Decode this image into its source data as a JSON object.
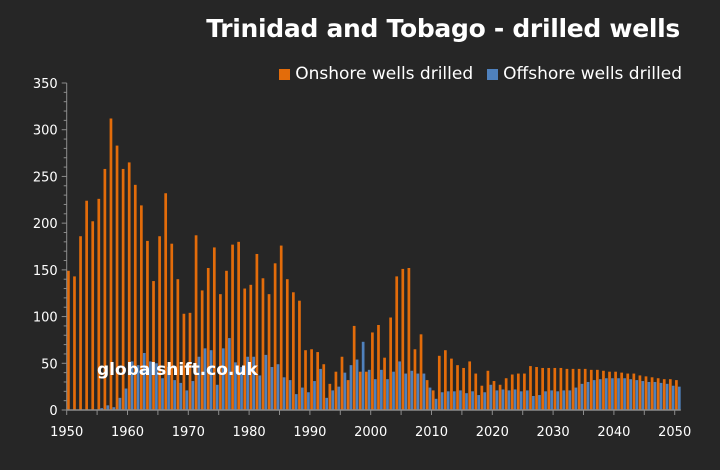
{
  "chart_data": {
    "type": "bar",
    "title": "Trinidad and Tobago - drilled wells",
    "xlabel": "",
    "ylabel": "",
    "ylim": [
      0,
      350
    ],
    "yticks": [
      0,
      50,
      100,
      150,
      200,
      250,
      300,
      350
    ],
    "xtick_labels": [
      "1950",
      "1960",
      "1970",
      "1980",
      "1990",
      "2000",
      "2010",
      "2020",
      "2030",
      "2040",
      "2050"
    ],
    "legend_position": "top-right",
    "grid": false,
    "x_start": 1950,
    "x_end": 2050,
    "series": [
      {
        "name": "Onshore wells drilled",
        "color": "#E36C0A",
        "values": [
          149,
          143,
          186,
          224,
          202,
          226,
          258,
          312,
          283,
          258,
          265,
          241,
          219,
          181,
          138,
          186,
          232,
          178,
          140,
          103,
          104,
          187,
          128,
          152,
          174,
          124,
          149,
          177,
          180,
          130,
          134,
          167,
          141,
          124,
          157,
          176,
          140,
          126,
          117,
          64,
          65,
          62,
          49,
          28,
          41,
          57,
          32,
          90,
          41,
          41,
          83,
          91,
          56,
          99,
          143,
          151,
          152,
          65,
          81,
          32,
          21,
          58,
          64,
          55,
          48,
          45,
          52,
          39,
          26,
          42,
          31,
          27,
          34,
          38,
          39,
          39,
          47,
          46,
          45,
          45,
          45,
          45,
          44,
          44,
          44,
          44,
          43,
          43,
          42,
          41,
          41,
          40,
          39,
          39,
          37,
          36,
          35,
          34,
          33,
          33,
          32
        ]
      },
      {
        "name": "Offshore wells drilled",
        "color": "#4F81BD",
        "values": [
          0,
          0,
          0,
          0,
          0,
          2,
          5,
          3,
          13,
          23,
          52,
          48,
          61,
          52,
          50,
          34,
          46,
          32,
          29,
          21,
          31,
          57,
          66,
          64,
          27,
          66,
          77,
          51,
          46,
          57,
          57,
          37,
          59,
          46,
          49,
          35,
          32,
          17,
          24,
          19,
          31,
          44,
          13,
          21,
          25,
          40,
          48,
          54,
          73,
          43,
          33,
          43,
          33,
          41,
          52,
          39,
          42,
          39,
          39,
          24,
          12,
          19,
          20,
          20,
          21,
          18,
          20,
          16,
          19,
          27,
          21,
          22,
          21,
          22,
          20,
          21,
          15,
          16,
          20,
          21,
          20,
          21,
          21,
          24,
          28,
          30,
          32,
          33,
          34,
          34,
          34,
          34,
          33,
          32,
          31,
          30,
          30,
          29,
          28,
          26,
          25
        ]
      }
    ]
  },
  "watermark": "globalshift.co.uk"
}
